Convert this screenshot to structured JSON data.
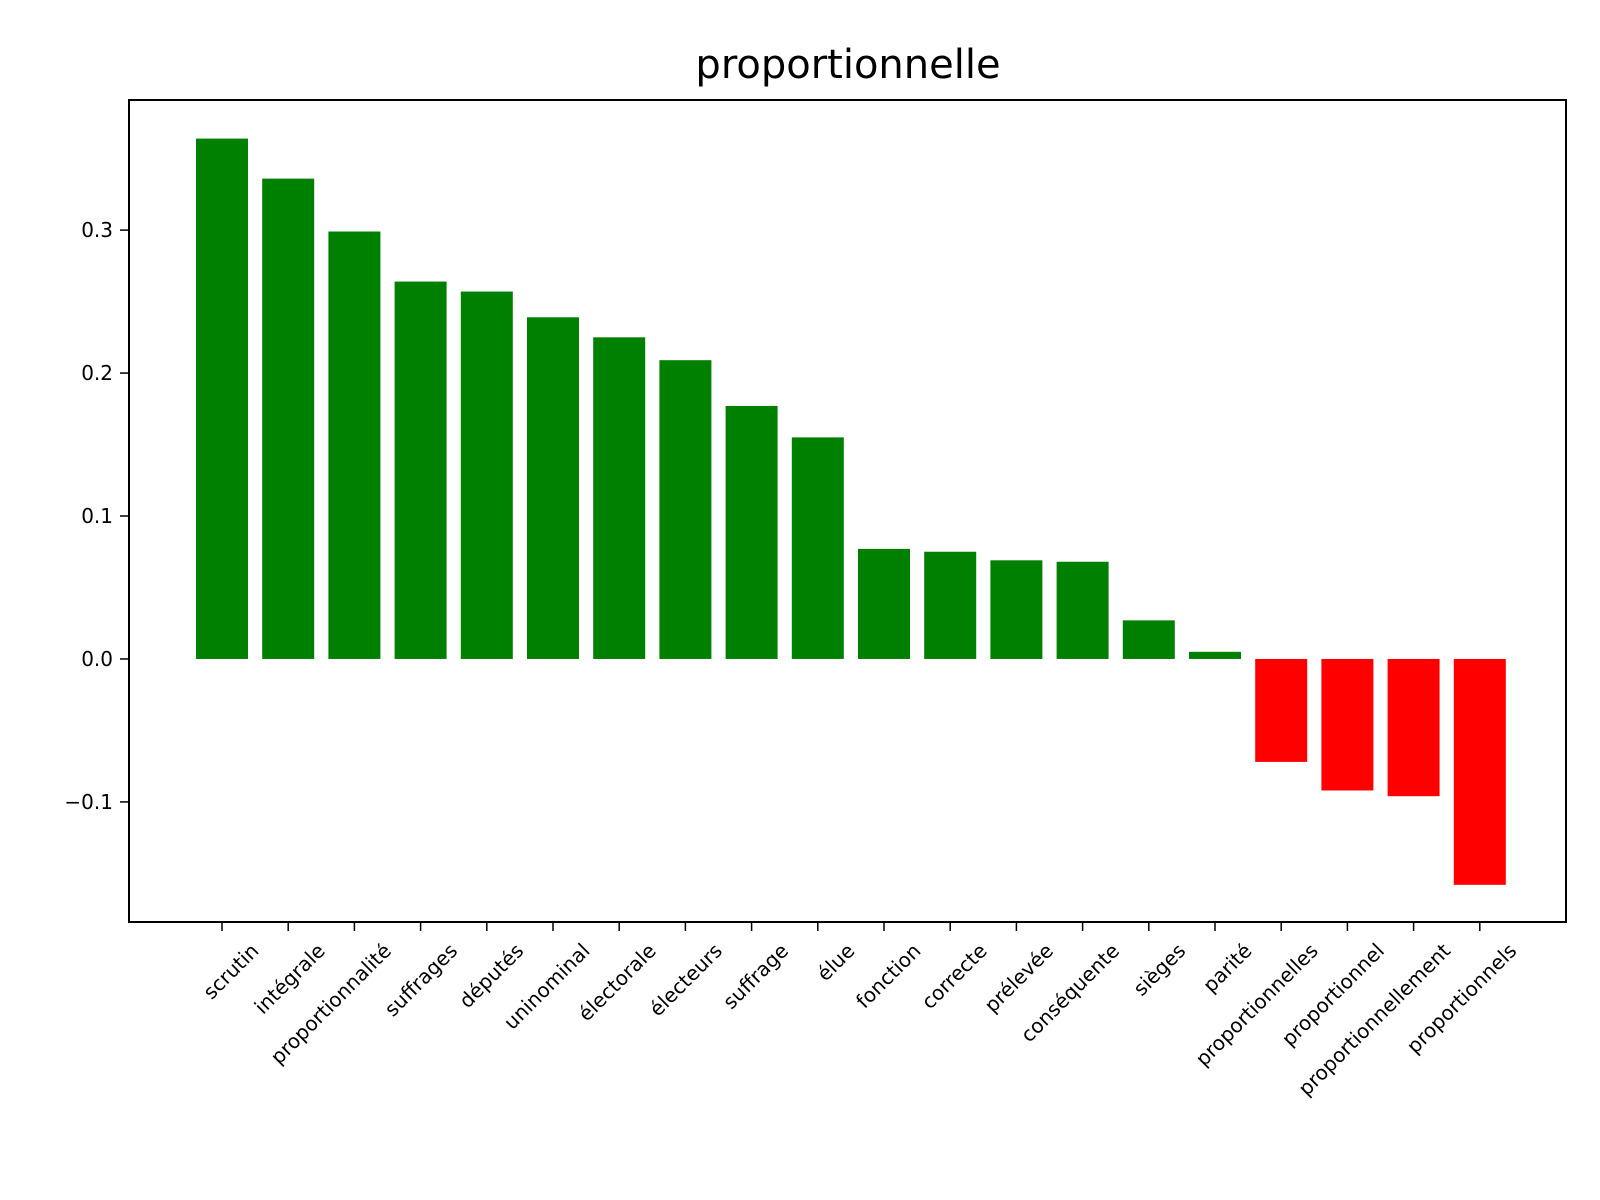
{
  "chart_data": {
    "type": "bar",
    "title": "proportionnelle",
    "xlabel": "",
    "ylabel": "",
    "ylim": [
      -0.184,
      0.391
    ],
    "yticks": [
      -0.1,
      0.0,
      0.1,
      0.2,
      0.3
    ],
    "ytick_labels": [
      "−0.1",
      "0.0",
      "0.1",
      "0.2",
      "0.3"
    ],
    "categories": [
      "scrutin",
      "intégrale",
      "proportionnalité",
      "suffrages",
      "députés",
      "uninominal",
      "électorale",
      "électeurs",
      "suffrage",
      "élue",
      "fonction",
      "correcte",
      "prélevée",
      "conséquente",
      "sièges",
      "parité",
      "proportionnelles",
      "proportionnel",
      "proportionnellement",
      "proportionnels"
    ],
    "values": [
      0.364,
      0.336,
      0.299,
      0.264,
      0.257,
      0.239,
      0.225,
      0.209,
      0.177,
      0.155,
      0.077,
      0.075,
      0.069,
      0.068,
      0.027,
      0.005,
      -0.072,
      -0.092,
      -0.096,
      -0.158
    ],
    "colors": {
      "positive": "#008000",
      "negative": "#ff0000"
    },
    "grid": false,
    "legend": "none"
  }
}
